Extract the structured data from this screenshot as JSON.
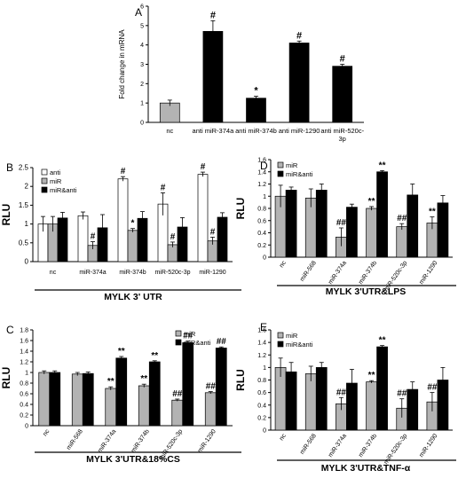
{
  "colors": {
    "white": "#ffffff",
    "gray": "#b3b3b3",
    "black": "#000000",
    "axis": "#000000"
  },
  "chart_data": [
    {
      "panel_letter": "A",
      "type": "bar",
      "ylabel": "Fold change in mRNA",
      "ylim": [
        0,
        6
      ],
      "yticks": [
        0,
        1,
        2,
        3,
        4,
        5,
        6
      ],
      "ytick_labels": [
        "0",
        "1",
        "2",
        "3",
        "4",
        "5",
        "6"
      ],
      "categories": [
        "nc",
        "anti miR-374a",
        "anti miR-374b",
        "anti miR-1290",
        "anti miR-520c-3p"
      ],
      "category_lines": [
        [
          "nc"
        ],
        [
          "anti miR-374a"
        ],
        [
          "anti miR-374b"
        ],
        [
          "anti miR-1290"
        ],
        [
          "anti miR-520c-",
          "3p"
        ]
      ],
      "bar_colors": [
        "#b3b3b3",
        "#000000",
        "#000000",
        "#000000",
        "#000000"
      ],
      "series": [
        {
          "values": [
            1.0,
            4.7,
            1.25,
            4.1,
            2.9
          ],
          "errors": [
            0.15,
            0.55,
            0.1,
            0.1,
            0.1
          ],
          "marks": [
            "",
            "#",
            "*",
            "#",
            "#"
          ]
        }
      ]
    },
    {
      "panel_letter": "B",
      "type": "bar",
      "ylabel": "RLU",
      "ylim": [
        0,
        2.5
      ],
      "yticks": [
        0,
        0.5,
        1,
        1.5,
        2,
        2.5
      ],
      "ytick_labels": [
        "0",
        "0.5",
        "1",
        "1.5",
        "2",
        "2.5"
      ],
      "categories": [
        "nc",
        "miR-374a",
        "miR-374b",
        "miR-520c-3p",
        "miR-1290"
      ],
      "legend": {
        "position": "top-left",
        "entries": [
          "anti",
          "miR",
          "miR&anti"
        ]
      },
      "title": "MYLK 3' UTR",
      "series": [
        {
          "name": "anti",
          "color": "#ffffff",
          "values": [
            1.0,
            1.22,
            2.2,
            1.53,
            2.32
          ],
          "errors": [
            0.2,
            0.1,
            0.06,
            0.3,
            0.06
          ],
          "marks": [
            "",
            "",
            "#",
            "#",
            "#"
          ]
        },
        {
          "name": "miR",
          "color": "#b3b3b3",
          "values": [
            1.0,
            0.43,
            0.83,
            0.45,
            0.55
          ],
          "errors": [
            0.2,
            0.1,
            0.05,
            0.07,
            0.1
          ],
          "marks": [
            "",
            "#",
            "*",
            "#",
            "#"
          ]
        },
        {
          "name": "miR&anti",
          "color": "#000000",
          "values": [
            1.16,
            0.9,
            1.15,
            0.92,
            1.18
          ],
          "errors": [
            0.15,
            0.35,
            0.18,
            0.25,
            0.12
          ],
          "marks": [
            "",
            "",
            "",
            "",
            ""
          ]
        }
      ]
    },
    {
      "panel_letter": "C",
      "type": "bar",
      "ylabel": "RLU",
      "ylim": [
        0,
        1.8
      ],
      "yticks": [
        0,
        0.2,
        0.4,
        0.6,
        0.8,
        1,
        1.2,
        1.4,
        1.6,
        1.8
      ],
      "ytick_labels": [
        "0",
        "0.2",
        "0.4",
        "0.6",
        "0.8",
        "1",
        "1.2",
        "1.4",
        "1.6",
        "1.8"
      ],
      "categories": [
        "nc",
        "miR-568",
        "miR-374a",
        "miR-374b",
        "miR-520c-3p",
        "miR-1290"
      ],
      "legend": {
        "position": "top-right",
        "entries": [
          "miR",
          "miR&anti"
        ]
      },
      "title": "MYLK 3'UTR&18%CS",
      "series": [
        {
          "name": "miR",
          "color": "#b3b3b3",
          "values": [
            1.0,
            0.97,
            0.7,
            0.75,
            0.48,
            0.62
          ],
          "errors": [
            0.03,
            0.03,
            0.03,
            0.03,
            0.02,
            0.02
          ],
          "marks": [
            "",
            "",
            "**",
            "**",
            "##",
            "##"
          ]
        },
        {
          "name": "miR&anti",
          "color": "#000000",
          "values": [
            1.0,
            0.98,
            1.27,
            1.2,
            1.56,
            1.46
          ],
          "errors": [
            0.03,
            0.03,
            0.03,
            0.02,
            0.03,
            0.02
          ],
          "marks": [
            "",
            "",
            "**",
            "**",
            "##",
            "##"
          ]
        }
      ]
    },
    {
      "panel_letter": "D",
      "type": "bar",
      "ylabel": "RLU",
      "ylim": [
        0,
        1.6
      ],
      "yticks": [
        0,
        0.2,
        0.4,
        0.6,
        0.8,
        1,
        1.2,
        1.4,
        1.6
      ],
      "ytick_labels": [
        "0",
        "0.2",
        "0.4",
        "0.6",
        "0.8",
        "1",
        "1.2",
        "1.4",
        "1.6"
      ],
      "categories": [
        "nc",
        "miR-568",
        "miR-374a",
        "miR-374b",
        "miR-520c-3p",
        "miR-1290"
      ],
      "legend": {
        "position": "top-left",
        "entries": [
          "miR",
          "miR&anti"
        ]
      },
      "title": "MYLK 3'UTR&LPS",
      "series": [
        {
          "name": "miR",
          "color": "#b3b3b3",
          "values": [
            1.0,
            0.97,
            0.33,
            0.8,
            0.5,
            0.56
          ],
          "errors": [
            0.18,
            0.15,
            0.15,
            0.03,
            0.05,
            0.1
          ],
          "marks": [
            "",
            "",
            "##",
            "**",
            "##",
            "**"
          ]
        },
        {
          "name": "miR&anti",
          "color": "#000000",
          "values": [
            1.1,
            1.1,
            0.82,
            1.4,
            1.02,
            0.89
          ],
          "errors": [
            0.05,
            0.1,
            0.05,
            0.02,
            0.18,
            0.12
          ],
          "marks": [
            "",
            "",
            "",
            "**",
            "",
            ""
          ]
        }
      ]
    },
    {
      "panel_letter": "E",
      "type": "bar",
      "ylabel": "RLU",
      "ylim": [
        0,
        1.6
      ],
      "yticks": [
        0,
        0.2,
        0.4,
        0.6,
        0.8,
        1,
        1.2,
        1.4,
        1.6
      ],
      "ytick_labels": [
        "0",
        "0.2",
        "0.4",
        "0.6",
        "0.8",
        "1",
        "1.2",
        "1.4",
        "1.6"
      ],
      "categories": [
        "nc",
        "miR-568",
        "miR-374a",
        "miR-374b",
        "miR-520c-3p",
        "miR-1290"
      ],
      "legend": {
        "position": "top-left",
        "entries": [
          "miR",
          "miR&anti"
        ]
      },
      "title": "MYLK 3'UTR&TNF-α",
      "series": [
        {
          "name": "miR",
          "color": "#b3b3b3",
          "values": [
            1.0,
            0.9,
            0.42,
            0.77,
            0.35,
            0.45
          ],
          "errors": [
            0.15,
            0.12,
            0.1,
            0.02,
            0.15,
            0.15
          ],
          "marks": [
            "",
            "",
            "##",
            "**",
            "##",
            "##"
          ]
        },
        {
          "name": "miR&anti",
          "color": "#000000",
          "values": [
            0.93,
            1.0,
            0.75,
            1.33,
            0.65,
            0.8
          ],
          "errors": [
            0.15,
            0.08,
            0.22,
            0.02,
            0.12,
            0.2
          ],
          "marks": [
            "",
            "",
            "",
            "**",
            "",
            ""
          ]
        }
      ]
    }
  ]
}
